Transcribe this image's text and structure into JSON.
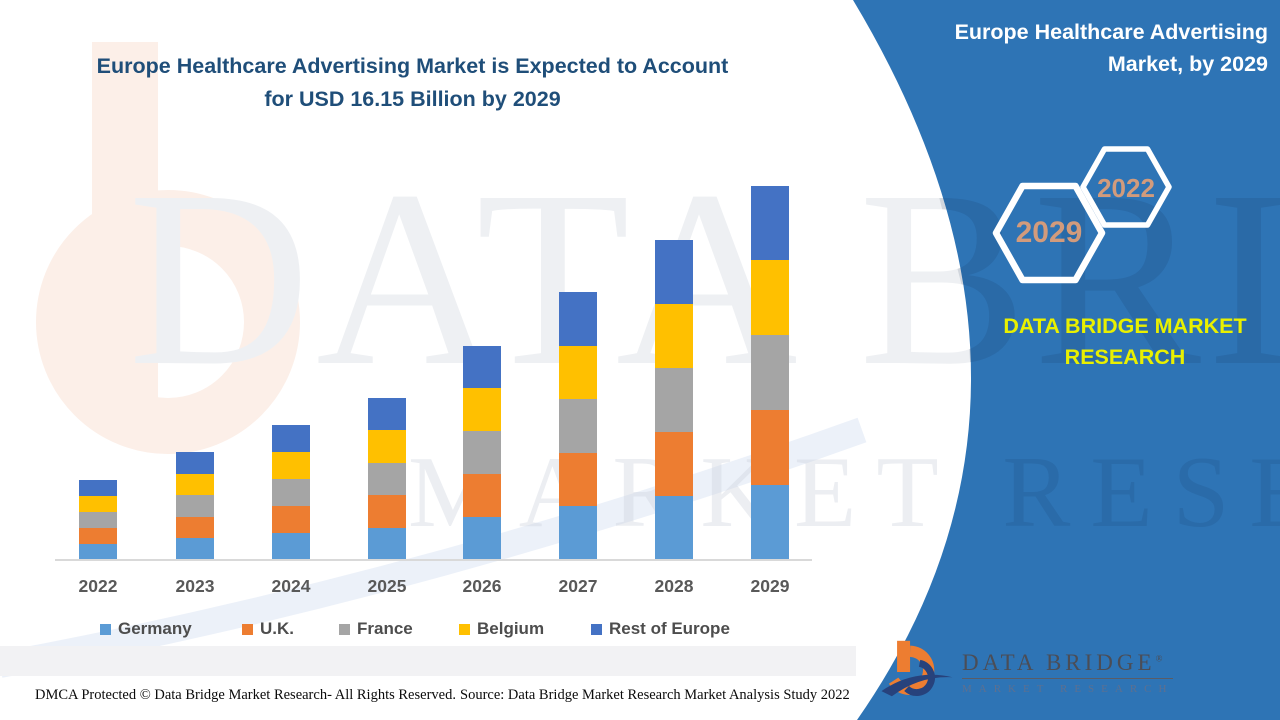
{
  "header": {
    "title_line1": "Europe Healthcare Advertising Market is Expected to Account",
    "title_line2": "for USD 16.15 Billion by 2029",
    "title_color": "#1F4E79"
  },
  "side_panel": {
    "panel_color": "#2E74B5",
    "title_line1": "Europe Healthcare Advertising",
    "title_line2": "Market, by 2029",
    "hexagons": [
      {
        "label": "2029"
      },
      {
        "label": "2022"
      }
    ],
    "hexagon_label_color": "#D29B7C",
    "brand_line1": "DATA BRIDGE MARKET",
    "brand_line2": "RESEARCH",
    "brand_color": "#E9F000"
  },
  "chart_data": {
    "type": "bar",
    "stacked": true,
    "title": "Europe Healthcare Advertising Market is Expected to Account for USD 16.15 Billion by 2029",
    "unit": "USD Billion",
    "categories": [
      "2022",
      "2023",
      "2024",
      "2025",
      "2026",
      "2027",
      "2028",
      "2029"
    ],
    "series": [
      {
        "name": "Germany",
        "color": "#5B9BD5",
        "values": [
          0.69,
          0.93,
          1.17,
          1.4,
          1.85,
          2.31,
          2.76,
          3.23
        ]
      },
      {
        "name": "U.K.",
        "color": "#ED7D31",
        "values": [
          0.69,
          0.93,
          1.17,
          1.4,
          1.85,
          2.31,
          2.76,
          3.23
        ]
      },
      {
        "name": "France",
        "color": "#A5A5A5",
        "values": [
          0.69,
          0.93,
          1.17,
          1.4,
          1.85,
          2.31,
          2.76,
          3.23
        ]
      },
      {
        "name": "Belgium",
        "color": "#FFC000",
        "values": [
          0.69,
          0.93,
          1.17,
          1.4,
          1.85,
          2.31,
          2.76,
          3.23
        ]
      },
      {
        "name": "Rest of Europe",
        "color": "#4472C4",
        "values": [
          0.69,
          0.93,
          1.17,
          1.4,
          1.85,
          2.31,
          2.76,
          3.23
        ]
      }
    ],
    "totals": [
      3.45,
      4.66,
      5.83,
      7.0,
      9.24,
      11.57,
      13.82,
      16.15
    ],
    "ylim": [
      0,
      16.5
    ],
    "y_axis_shown": false,
    "grid": false,
    "legend_position": "bottom",
    "values_estimated_from_pixels": true
  },
  "watermark": {
    "line1": "DATA BRIDGE",
    "line2": "MARKET RESEARCH"
  },
  "footer": {
    "dmca": "DMCA Protected © Data Bridge Market Research- All Rights Reserved.",
    "source": "Source: Data Bridge Market Research Market Analysis Study 2022"
  },
  "logo": {
    "line1": "DATA BRIDGE",
    "reg": "®",
    "line2": "MARKET RESEARCH"
  }
}
